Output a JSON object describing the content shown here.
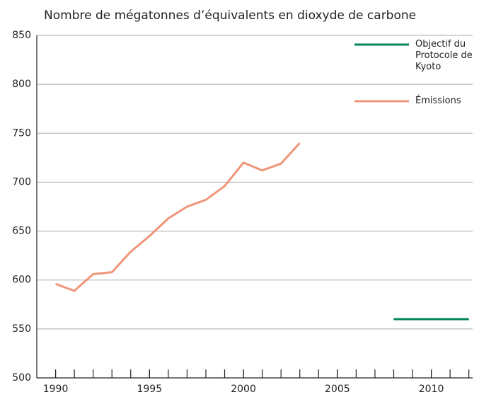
{
  "chart_data": {
    "type": "line",
    "title": "Nombre de mégatonnes d’équivalents en dioxyde de carbone",
    "series": [
      {
        "name": "Objectif du Protocole de Kyoto",
        "color": "#00855a",
        "x": [
          2008,
          2012
        ],
        "values": [
          560,
          560
        ]
      },
      {
        "name": "Émissions",
        "color": "#f0957a",
        "x": [
          1990,
          1991,
          1992,
          1993,
          1994,
          1995,
          1996,
          1997,
          1998,
          1999,
          2000,
          2001,
          2002,
          2003
        ],
        "values": [
          596,
          589,
          606,
          608,
          629,
          645,
          663,
          675,
          682,
          696,
          720,
          712,
          719,
          740
        ]
      }
    ],
    "xlim": [
      1989,
      2012.2
    ],
    "xticks": [
      1990,
      1995,
      2000,
      2005,
      2010
    ],
    "ylim": [
      500,
      850
    ],
    "yticks": [
      500,
      550,
      600,
      650,
      700,
      750,
      800,
      850
    ],
    "grid": true,
    "legend": "top-right"
  }
}
